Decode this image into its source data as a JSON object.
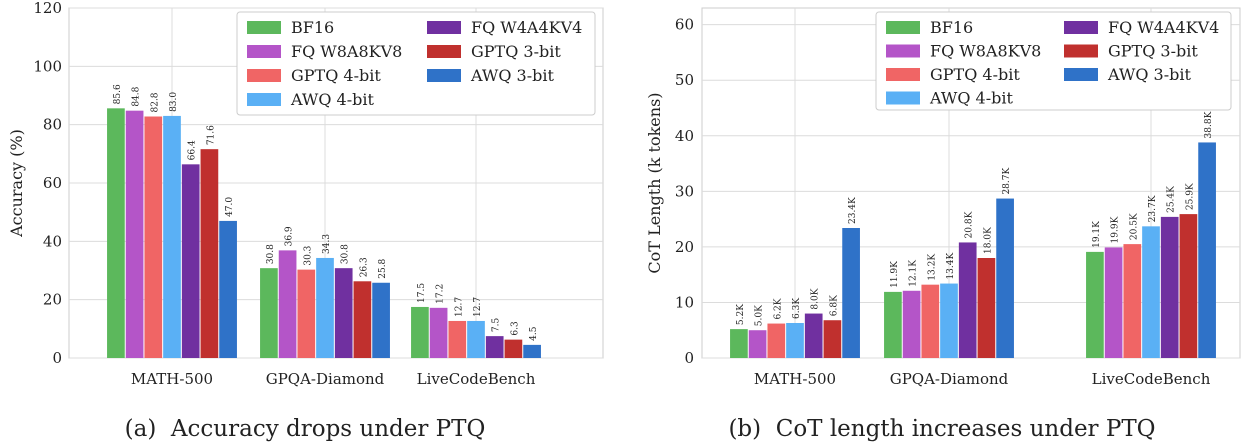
{
  "chart_data": [
    {
      "type": "bar",
      "title": "",
      "caption": "(a)  Accuracy drops under PTQ",
      "xlabel": "",
      "ylabel": "Accuracy (%)",
      "ylim": [
        0,
        120
      ],
      "yticks": [
        0,
        20,
        40,
        60,
        80,
        100,
        120
      ],
      "grid": true,
      "legend_position": "top-right",
      "categories": [
        "MATH-500",
        "GPQA-Diamond",
        "LiveCodeBench"
      ],
      "series": [
        {
          "name": "BF16",
          "color": "#5cb85c",
          "values": [
            85.6,
            30.8,
            17.5
          ],
          "labels": [
            "85.6",
            "30.8",
            "17.5"
          ]
        },
        {
          "name": "FQ W8A8KV8",
          "color": "#b455c8",
          "values": [
            84.8,
            36.9,
            17.2
          ],
          "labels": [
            "84.8",
            "36.9",
            "17.2"
          ]
        },
        {
          "name": "GPTQ 4-bit",
          "color": "#f06565",
          "values": [
            82.8,
            30.3,
            12.7
          ],
          "labels": [
            "82.8",
            "30.3",
            "12.7"
          ]
        },
        {
          "name": "AWQ 4-bit",
          "color": "#5ab0f5",
          "values": [
            83.0,
            34.3,
            12.7
          ],
          "labels": [
            "83.0",
            "34.3",
            "12.7"
          ]
        },
        {
          "name": "FQ W4A4KV4",
          "color": "#7030a0",
          "values": [
            66.4,
            30.8,
            7.5
          ],
          "labels": [
            "66.4",
            "30.8",
            "7.5"
          ]
        },
        {
          "name": "GPTQ 3-bit",
          "color": "#c0302e",
          "values": [
            71.6,
            26.3,
            6.3
          ],
          "labels": [
            "71.6",
            "26.3",
            "6.3"
          ]
        },
        {
          "name": "AWQ 3-bit",
          "color": "#2f72c8",
          "values": [
            47.0,
            25.8,
            4.5
          ],
          "labels": [
            "47.0",
            "25.8",
            "4.5"
          ]
        }
      ]
    },
    {
      "type": "bar",
      "title": "",
      "caption": "(b)  CoT length increases under PTQ",
      "xlabel": "",
      "ylabel": "CoT Length (k tokens)",
      "ylim": [
        0,
        63
      ],
      "yticks": [
        0,
        10,
        20,
        30,
        40,
        50,
        60
      ],
      "grid": true,
      "legend_position": "top-right",
      "categories": [
        "MATH-500",
        "GPQA-Diamond",
        "LiveCodeBench"
      ],
      "series": [
        {
          "name": "BF16",
          "color": "#5cb85c",
          "values": [
            5.2,
            11.9,
            19.1
          ],
          "labels": [
            "5.2K",
            "11.9K",
            "19.1K"
          ]
        },
        {
          "name": "FQ W8A8KV8",
          "color": "#b455c8",
          "values": [
            5.0,
            12.1,
            19.9
          ],
          "labels": [
            "5.0K",
            "12.1K",
            "19.9K"
          ]
        },
        {
          "name": "GPTQ 4-bit",
          "color": "#f06565",
          "values": [
            6.2,
            13.2,
            20.5
          ],
          "labels": [
            "6.2K",
            "13.2K",
            "20.5K"
          ]
        },
        {
          "name": "AWQ 4-bit",
          "color": "#5ab0f5",
          "values": [
            6.3,
            13.4,
            23.7
          ],
          "labels": [
            "6.3K",
            "13.4K",
            "23.7K"
          ]
        },
        {
          "name": "FQ W4A4KV4",
          "color": "#7030a0",
          "values": [
            8.0,
            20.8,
            25.4
          ],
          "labels": [
            "8.0K",
            "20.8K",
            "25.4K"
          ]
        },
        {
          "name": "GPTQ 3-bit",
          "color": "#c0302e",
          "values": [
            6.8,
            18.0,
            25.9
          ],
          "labels": [
            "6.8K",
            "18.0K",
            "25.9K"
          ]
        },
        {
          "name": "AWQ 3-bit",
          "color": "#2f72c8",
          "values": [
            23.4,
            28.7,
            38.8
          ],
          "labels": [
            "23.4K",
            "28.7K",
            "38.8K"
          ]
        }
      ]
    }
  ]
}
